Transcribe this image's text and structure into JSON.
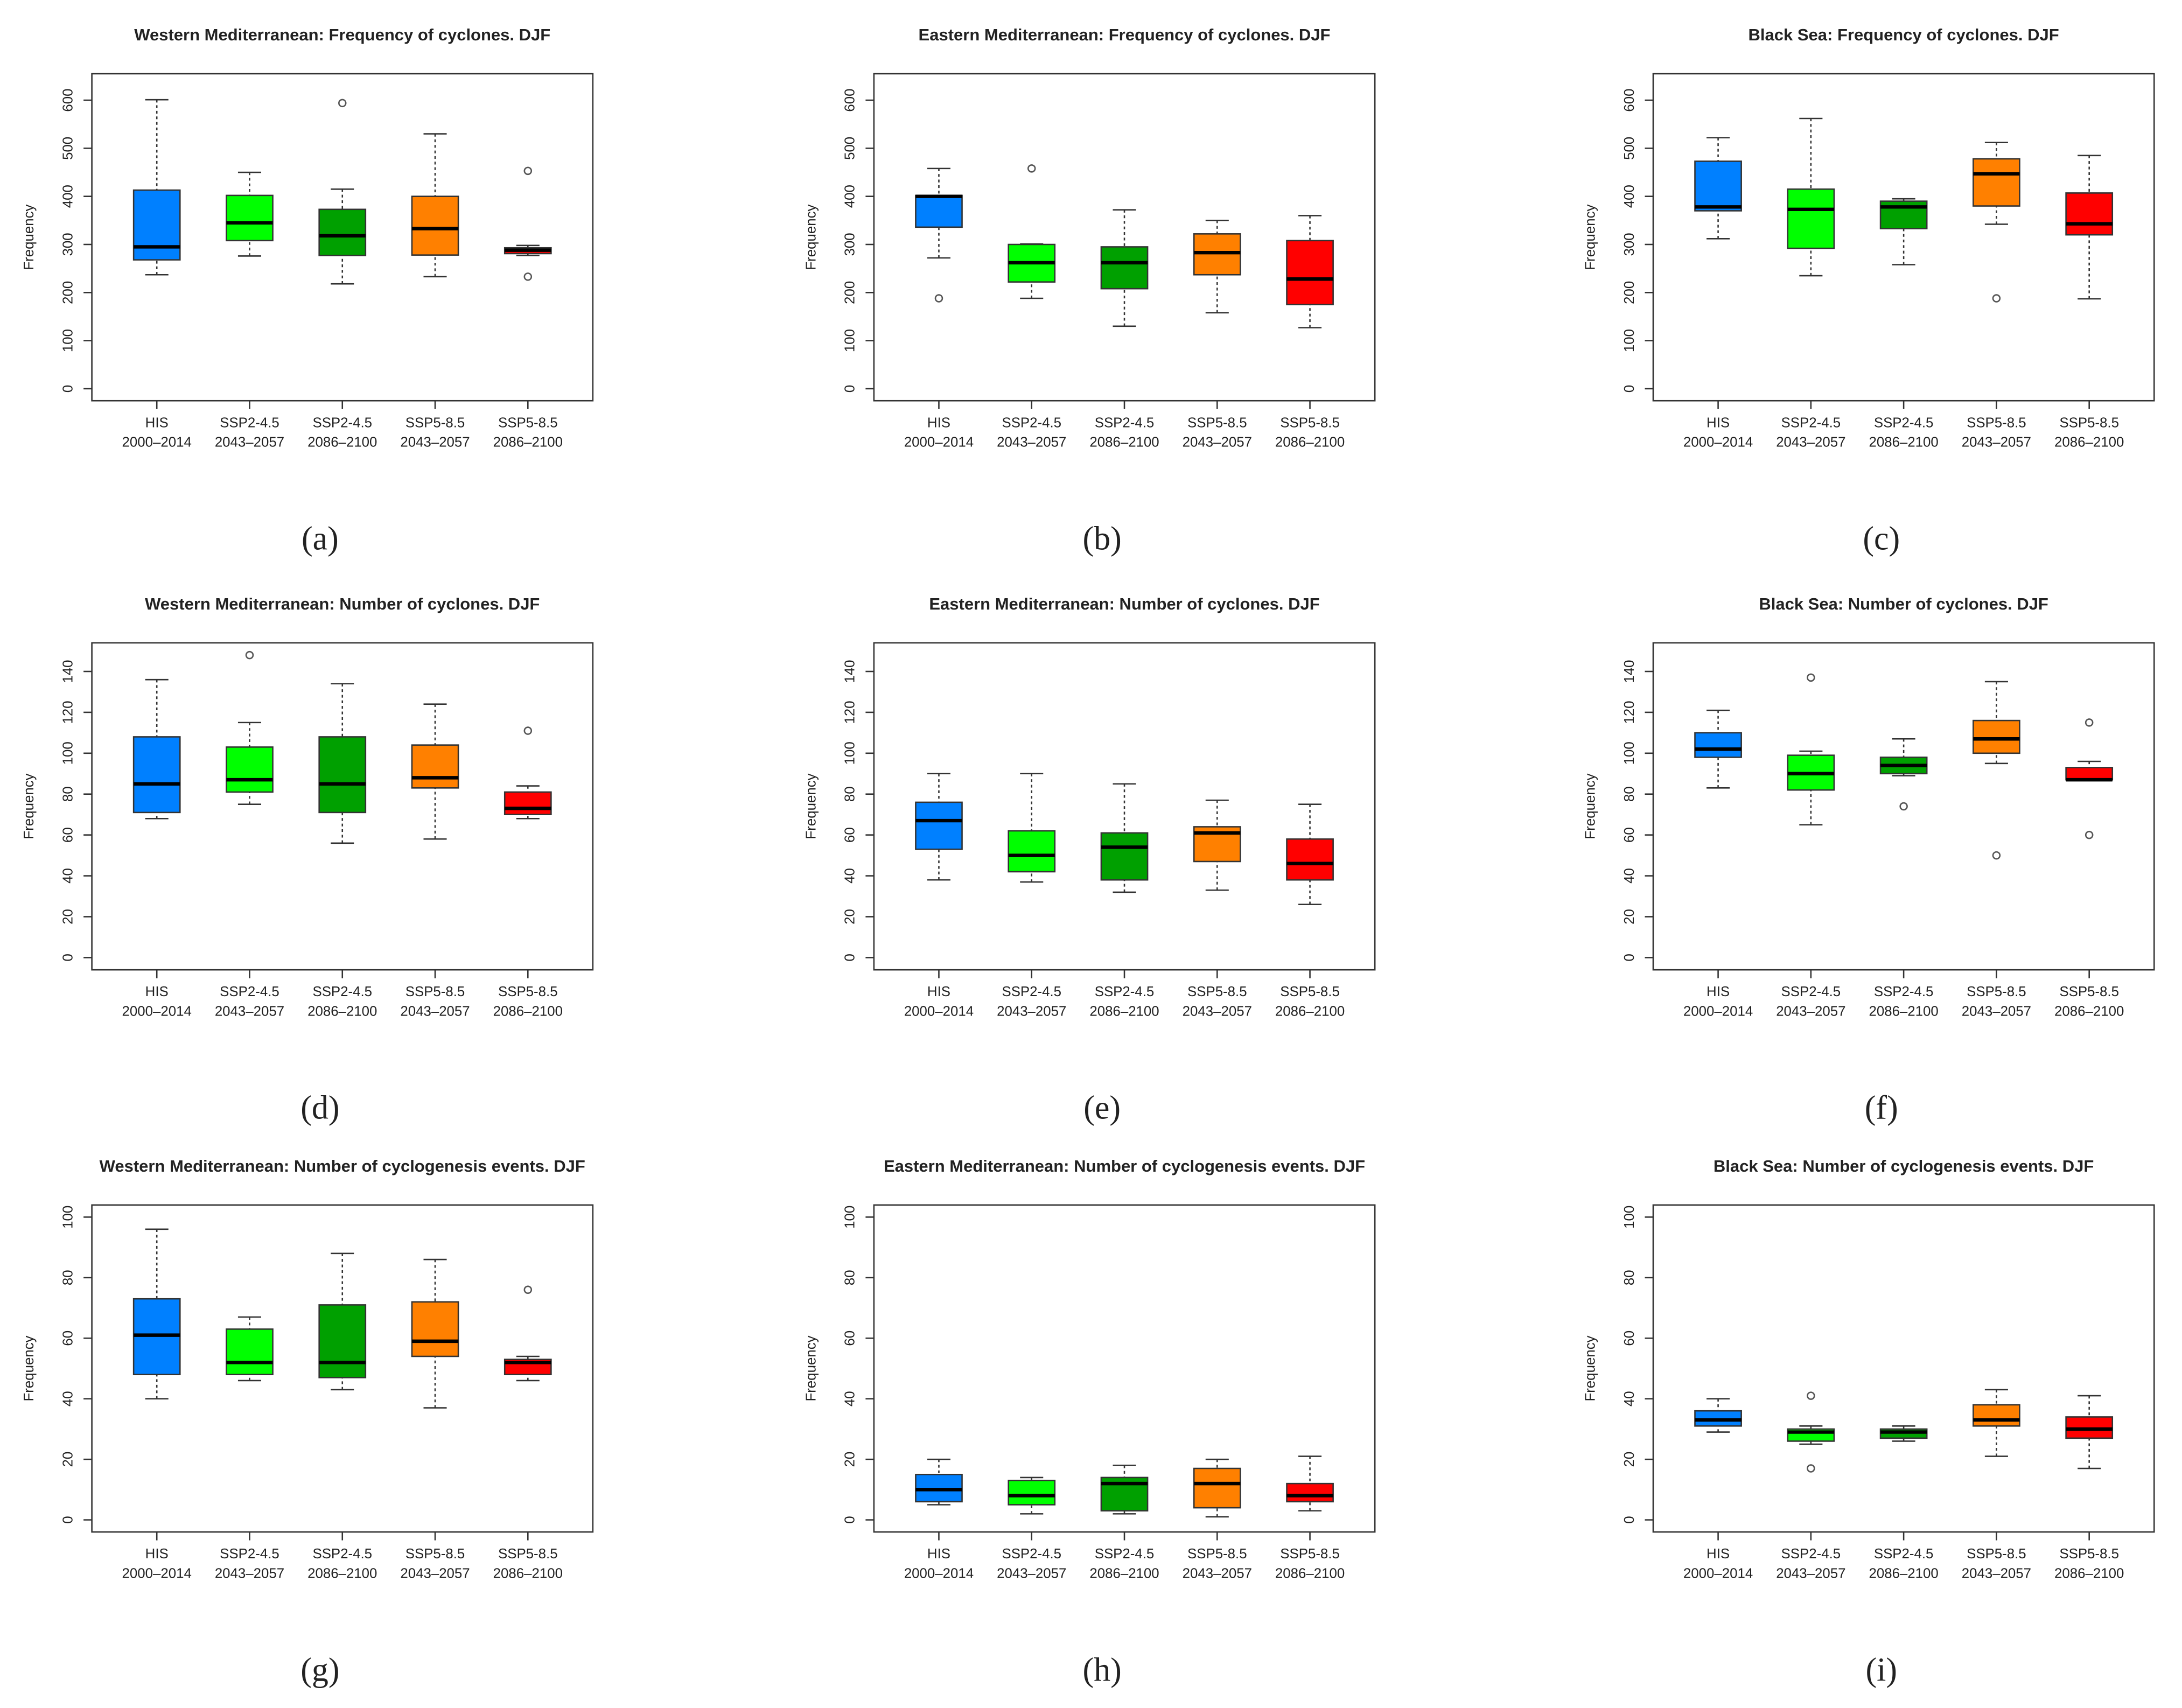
{
  "chart_data": [
    {
      "type": "box",
      "title": "Western Mediterranean: Frequency of cyclones. DJF",
      "ylabel": "Frequency",
      "panel": "(a)",
      "categories": [
        [
          "HIS",
          "2000–2014"
        ],
        [
          "SSP2-4.5",
          "2043–2057"
        ],
        [
          "SSP2-4.5",
          "2086–2100"
        ],
        [
          "SSP5-8.5",
          "2043–2057"
        ],
        [
          "SSP5-8.5",
          "2086–2100"
        ]
      ],
      "ylim": [
        -25,
        655
      ],
      "yticks": [
        0,
        100,
        200,
        300,
        400,
        500,
        600
      ],
      "boxes": [
        {
          "color": "#0080ff",
          "whislo": 237,
          "q1": 268,
          "med": 295,
          "q3": 413,
          "whishi": 601,
          "fliers": []
        },
        {
          "color": "#00ff00",
          "whislo": 276,
          "q1": 308,
          "med": 345,
          "q3": 402,
          "whishi": 450,
          "fliers": []
        },
        {
          "color": "#00a000",
          "whislo": 218,
          "q1": 277,
          "med": 318,
          "q3": 373,
          "whishi": 415,
          "fliers": [
            594
          ]
        },
        {
          "color": "#ff8000",
          "whislo": 233,
          "q1": 278,
          "med": 333,
          "q3": 400,
          "whishi": 530,
          "fliers": []
        },
        {
          "color": "#ff0000",
          "whislo": 277,
          "q1": 281,
          "med": 288,
          "q3": 293,
          "whishi": 298,
          "fliers": [
            453,
            233
          ]
        }
      ]
    },
    {
      "type": "box",
      "title": "Eastern Mediterranean: Frequency of cyclones. DJF",
      "ylabel": "Frequency",
      "panel": "(b)",
      "categories": [
        [
          "HIS",
          "2000–2014"
        ],
        [
          "SSP2-4.5",
          "2043–2057"
        ],
        [
          "SSP2-4.5",
          "2086–2100"
        ],
        [
          "SSP5-8.5",
          "2043–2057"
        ],
        [
          "SSP5-8.5",
          "2086–2100"
        ]
      ],
      "ylim": [
        -25,
        655
      ],
      "yticks": [
        0,
        100,
        200,
        300,
        400,
        500,
        600
      ],
      "boxes": [
        {
          "color": "#0080ff",
          "whislo": 272,
          "q1": 336,
          "med": 400,
          "q3": 402,
          "whishi": 458,
          "fliers": [
            188
          ]
        },
        {
          "color": "#00ff00",
          "whislo": 188,
          "q1": 222,
          "med": 262,
          "q3": 300,
          "whishi": 301,
          "fliers": [
            458
          ]
        },
        {
          "color": "#00a000",
          "whislo": 130,
          "q1": 208,
          "med": 262,
          "q3": 295,
          "whishi": 372,
          "fliers": []
        },
        {
          "color": "#ff8000",
          "whislo": 158,
          "q1": 237,
          "med": 283,
          "q3": 322,
          "whishi": 350,
          "fliers": []
        },
        {
          "color": "#ff0000",
          "whislo": 127,
          "q1": 175,
          "med": 228,
          "q3": 308,
          "whishi": 360,
          "fliers": []
        }
      ]
    },
    {
      "type": "box",
      "title": "Black Sea: Frequency of cyclones. DJF",
      "ylabel": "Frequency",
      "panel": "(c)",
      "categories": [
        [
          "HIS",
          "2000–2014"
        ],
        [
          "SSP2-4.5",
          "2043–2057"
        ],
        [
          "SSP2-4.5",
          "2086–2100"
        ],
        [
          "SSP5-8.5",
          "2043–2057"
        ],
        [
          "SSP5-8.5",
          "2086–2100"
        ]
      ],
      "ylim": [
        -25,
        655
      ],
      "yticks": [
        0,
        100,
        200,
        300,
        400,
        500,
        600
      ],
      "boxes": [
        {
          "color": "#0080ff",
          "whislo": 312,
          "q1": 370,
          "med": 378,
          "q3": 473,
          "whishi": 522,
          "fliers": []
        },
        {
          "color": "#00ff00",
          "whislo": 235,
          "q1": 292,
          "med": 373,
          "q3": 415,
          "whishi": 562,
          "fliers": []
        },
        {
          "color": "#00a000",
          "whislo": 258,
          "q1": 333,
          "med": 378,
          "q3": 390,
          "whishi": 395,
          "fliers": []
        },
        {
          "color": "#ff8000",
          "whislo": 342,
          "q1": 380,
          "med": 447,
          "q3": 478,
          "whishi": 512,
          "fliers": [
            188
          ]
        },
        {
          "color": "#ff0000",
          "whislo": 187,
          "q1": 320,
          "med": 343,
          "q3": 407,
          "whishi": 485,
          "fliers": []
        }
      ]
    },
    {
      "type": "box",
      "title": "Western Mediterranean: Number of cyclones. DJF",
      "ylabel": "Frequency",
      "panel": "(d)",
      "categories": [
        [
          "HIS",
          "2000–2014"
        ],
        [
          "SSP2-4.5",
          "2043–2057"
        ],
        [
          "SSP2-4.5",
          "2086–2100"
        ],
        [
          "SSP5-8.5",
          "2043–2057"
        ],
        [
          "SSP5-8.5",
          "2086–2100"
        ]
      ],
      "ylim": [
        -6,
        154
      ],
      "yticks": [
        0,
        20,
        40,
        60,
        80,
        100,
        120,
        140
      ],
      "boxes": [
        {
          "color": "#0080ff",
          "whislo": 68,
          "q1": 71,
          "med": 85,
          "q3": 108,
          "whishi": 136,
          "fliers": []
        },
        {
          "color": "#00ff00",
          "whislo": 75,
          "q1": 81,
          "med": 87,
          "q3": 103,
          "whishi": 115,
          "fliers": [
            148
          ]
        },
        {
          "color": "#00a000",
          "whislo": 56,
          "q1": 71,
          "med": 85,
          "q3": 108,
          "whishi": 134,
          "fliers": []
        },
        {
          "color": "#ff8000",
          "whislo": 58,
          "q1": 83,
          "med": 88,
          "q3": 104,
          "whishi": 124,
          "fliers": []
        },
        {
          "color": "#ff0000",
          "whislo": 68,
          "q1": 70,
          "med": 73,
          "q3": 81,
          "whishi": 84,
          "fliers": [
            111
          ]
        }
      ]
    },
    {
      "type": "box",
      "title": "Eastern Mediterranean: Number of cyclones. DJF",
      "ylabel": "Frequency",
      "panel": "(e)",
      "categories": [
        [
          "HIS",
          "2000–2014"
        ],
        [
          "SSP2-4.5",
          "2043–2057"
        ],
        [
          "SSP2-4.5",
          "2086–2100"
        ],
        [
          "SSP5-8.5",
          "2043–2057"
        ],
        [
          "SSP5-8.5",
          "2086–2100"
        ]
      ],
      "ylim": [
        -6,
        154
      ],
      "yticks": [
        0,
        20,
        40,
        60,
        80,
        100,
        120,
        140
      ],
      "boxes": [
        {
          "color": "#0080ff",
          "whislo": 38,
          "q1": 53,
          "med": 67,
          "q3": 76,
          "whishi": 90,
          "fliers": []
        },
        {
          "color": "#00ff00",
          "whislo": 37,
          "q1": 42,
          "med": 50,
          "q3": 62,
          "whishi": 90,
          "fliers": []
        },
        {
          "color": "#00a000",
          "whislo": 32,
          "q1": 38,
          "med": 54,
          "q3": 61,
          "whishi": 85,
          "fliers": []
        },
        {
          "color": "#ff8000",
          "whislo": 33,
          "q1": 47,
          "med": 61,
          "q3": 64,
          "whishi": 77,
          "fliers": []
        },
        {
          "color": "#ff0000",
          "whislo": 26,
          "q1": 38,
          "med": 46,
          "q3": 58,
          "whishi": 75,
          "fliers": []
        }
      ]
    },
    {
      "type": "box",
      "title": "Black Sea: Number of cyclones. DJF",
      "ylabel": "Frequency",
      "panel": "(f)",
      "categories": [
        [
          "HIS",
          "2000–2014"
        ],
        [
          "SSP2-4.5",
          "2043–2057"
        ],
        [
          "SSP2-4.5",
          "2086–2100"
        ],
        [
          "SSP5-8.5",
          "2043–2057"
        ],
        [
          "SSP5-8.5",
          "2086–2100"
        ]
      ],
      "ylim": [
        -6,
        154
      ],
      "yticks": [
        0,
        20,
        40,
        60,
        80,
        100,
        120,
        140
      ],
      "boxes": [
        {
          "color": "#0080ff",
          "whislo": 83,
          "q1": 98,
          "med": 102,
          "q3": 110,
          "whishi": 121,
          "fliers": []
        },
        {
          "color": "#00ff00",
          "whislo": 65,
          "q1": 82,
          "med": 90,
          "q3": 99,
          "whishi": 101,
          "fliers": [
            137
          ]
        },
        {
          "color": "#00a000",
          "whislo": 89,
          "q1": 90,
          "med": 94,
          "q3": 98,
          "whishi": 107,
          "fliers": [
            74
          ]
        },
        {
          "color": "#ff8000",
          "whislo": 95,
          "q1": 100,
          "med": 107,
          "q3": 116,
          "whishi": 135,
          "fliers": [
            50
          ]
        },
        {
          "color": "#ff0000",
          "whislo": 87,
          "q1": 87,
          "med": 87,
          "q3": 93,
          "whishi": 96,
          "fliers": [
            115,
            60
          ]
        }
      ]
    },
    {
      "type": "box",
      "title": "Western Mediterranean: Number of cyclogenesis events. DJF",
      "ylabel": "Frequency",
      "panel": "(g)",
      "categories": [
        [
          "HIS",
          "2000–2014"
        ],
        [
          "SSP2-4.5",
          "2043–2057"
        ],
        [
          "SSP2-4.5",
          "2086–2100"
        ],
        [
          "SSP5-8.5",
          "2043–2057"
        ],
        [
          "SSP5-8.5",
          "2086–2100"
        ]
      ],
      "ylim": [
        -4,
        104
      ],
      "yticks": [
        0,
        20,
        40,
        60,
        80,
        100
      ],
      "boxes": [
        {
          "color": "#0080ff",
          "whislo": 40,
          "q1": 48,
          "med": 61,
          "q3": 73,
          "whishi": 96,
          "fliers": []
        },
        {
          "color": "#00ff00",
          "whislo": 46,
          "q1": 48,
          "med": 52,
          "q3": 63,
          "whishi": 67,
          "fliers": []
        },
        {
          "color": "#00a000",
          "whislo": 43,
          "q1": 47,
          "med": 52,
          "q3": 71,
          "whishi": 88,
          "fliers": []
        },
        {
          "color": "#ff8000",
          "whislo": 37,
          "q1": 54,
          "med": 59,
          "q3": 72,
          "whishi": 86,
          "fliers": []
        },
        {
          "color": "#ff0000",
          "whislo": 46,
          "q1": 48,
          "med": 52,
          "q3": 53,
          "whishi": 54,
          "fliers": [
            76
          ]
        }
      ]
    },
    {
      "type": "box",
      "title": "Eastern Mediterranean: Number of cyclogenesis events. DJF",
      "ylabel": "Frequency",
      "panel": "(h)",
      "categories": [
        [
          "HIS",
          "2000–2014"
        ],
        [
          "SSP2-4.5",
          "2043–2057"
        ],
        [
          "SSP2-4.5",
          "2086–2100"
        ],
        [
          "SSP5-8.5",
          "2043–2057"
        ],
        [
          "SSP5-8.5",
          "2086–2100"
        ]
      ],
      "ylim": [
        -4,
        104
      ],
      "yticks": [
        0,
        20,
        40,
        60,
        80,
        100
      ],
      "boxes": [
        {
          "color": "#0080ff",
          "whislo": 5,
          "q1": 6,
          "med": 10,
          "q3": 15,
          "whishi": 20,
          "fliers": []
        },
        {
          "color": "#00ff00",
          "whislo": 2,
          "q1": 5,
          "med": 8,
          "q3": 13,
          "whishi": 14,
          "fliers": []
        },
        {
          "color": "#00a000",
          "whislo": 2,
          "q1": 3,
          "med": 12,
          "q3": 14,
          "whishi": 18,
          "fliers": []
        },
        {
          "color": "#ff8000",
          "whislo": 1,
          "q1": 4,
          "med": 12,
          "q3": 17,
          "whishi": 20,
          "fliers": []
        },
        {
          "color": "#ff0000",
          "whislo": 3,
          "q1": 6,
          "med": 8,
          "q3": 12,
          "whishi": 21,
          "fliers": []
        }
      ]
    },
    {
      "type": "box",
      "title": "Black Sea: Number of cyclogenesis events. DJF",
      "ylabel": "Frequency",
      "panel": "(i)",
      "categories": [
        [
          "HIS",
          "2000–2014"
        ],
        [
          "SSP2-4.5",
          "2043–2057"
        ],
        [
          "SSP2-4.5",
          "2086–2100"
        ],
        [
          "SSP5-8.5",
          "2043–2057"
        ],
        [
          "SSP5-8.5",
          "2086–2100"
        ]
      ],
      "ylim": [
        -4,
        104
      ],
      "yticks": [
        0,
        20,
        40,
        60,
        80,
        100
      ],
      "boxes": [
        {
          "color": "#0080ff",
          "whislo": 29,
          "q1": 31,
          "med": 33,
          "q3": 36,
          "whishi": 40,
          "fliers": []
        },
        {
          "color": "#00ff00",
          "whislo": 25,
          "q1": 26,
          "med": 29,
          "q3": 30,
          "whishi": 31,
          "fliers": [
            41,
            17
          ]
        },
        {
          "color": "#00a000",
          "whislo": 26,
          "q1": 27,
          "med": 29,
          "q3": 30,
          "whishi": 31,
          "fliers": []
        },
        {
          "color": "#ff8000",
          "whislo": 21,
          "q1": 31,
          "med": 33,
          "q3": 38,
          "whishi": 43,
          "fliers": []
        },
        {
          "color": "#ff0000",
          "whislo": 17,
          "q1": 27,
          "med": 30,
          "q3": 34,
          "whishi": 41,
          "fliers": []
        }
      ]
    }
  ]
}
